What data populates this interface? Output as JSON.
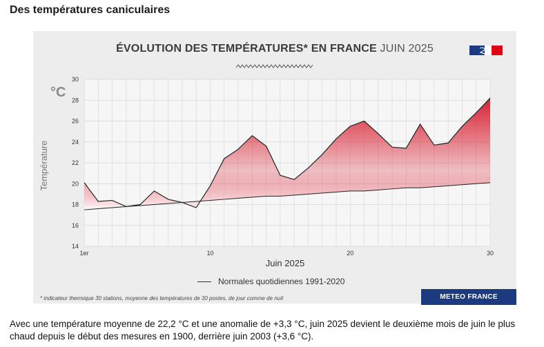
{
  "page": {
    "heading": "Des températures caniculaires",
    "paragraph": "Avec une température moyenne de 22,2 °C et une anomalie de +3,3 °C, juin 2025 devient le deuxième mois de juin le plus chaud depuis le début des mesures en 1900, derrière juin 2003 (+3,6 °C)."
  },
  "card": {
    "title_bold": "ÉVOLUTION DES TEMPÉRATURES* EN FRANCE",
    "title_light": "JUIN 2025",
    "unit": "°C",
    "footnote": "* indicateur thermique 30 stations, moyenne des températures de 30 postes, de jour comme de nuit",
    "brand": "METEO FRANCE",
    "legend_label": "Normales quotidiennes 1991-2020"
  },
  "colors": {
    "observed_line": "#222222",
    "fill_warm": "#d7182a",
    "fill_cool": "#ffffff",
    "grid": "#d4d4d4",
    "brand_bg": "#1b3a80"
  },
  "chart_data": {
    "type": "area",
    "title": "ÉVOLUTION DES TEMPÉRATURES* EN FRANCE JUIN 2025",
    "xlabel": "Juin 2025",
    "ylabel": "Température",
    "xlim": [
      1,
      30
    ],
    "ylim": [
      14,
      30
    ],
    "x_ticks": [
      {
        "value": 1,
        "label": "1er"
      },
      {
        "value": 10,
        "label": "10"
      },
      {
        "value": 20,
        "label": "20"
      },
      {
        "value": 30,
        "label": "30"
      }
    ],
    "y_ticks": [
      14,
      16,
      18,
      20,
      22,
      24,
      26,
      28,
      30
    ],
    "grid": true,
    "legend_position": "bottom",
    "x": [
      1,
      2,
      3,
      4,
      5,
      6,
      7,
      8,
      9,
      10,
      11,
      12,
      13,
      14,
      15,
      16,
      17,
      18,
      19,
      20,
      21,
      22,
      23,
      24,
      25,
      26,
      27,
      28,
      29,
      30
    ],
    "series": [
      {
        "values": [
          20.1,
          18.3,
          18.4,
          17.8,
          18.0,
          19.3,
          18.5,
          18.2,
          17.7,
          19.8,
          22.4,
          23.3,
          24.6,
          23.6,
          20.8,
          20.4,
          21.5,
          22.8,
          24.3,
          25.5,
          26.0,
          24.8,
          23.5,
          23.4,
          25.7,
          23.7,
          23.9,
          25.5,
          26.8,
          28.2
        ]
      },
      {
        "name": "Normales quotidiennes 1991-2020",
        "values": [
          17.5,
          17.6,
          17.7,
          17.8,
          17.9,
          18.0,
          18.1,
          18.2,
          18.3,
          18.4,
          18.5,
          18.6,
          18.7,
          18.8,
          18.8,
          18.9,
          19.0,
          19.1,
          19.2,
          19.3,
          19.3,
          19.4,
          19.5,
          19.6,
          19.6,
          19.7,
          19.8,
          19.9,
          20.0,
          20.1
        ]
      }
    ]
  }
}
